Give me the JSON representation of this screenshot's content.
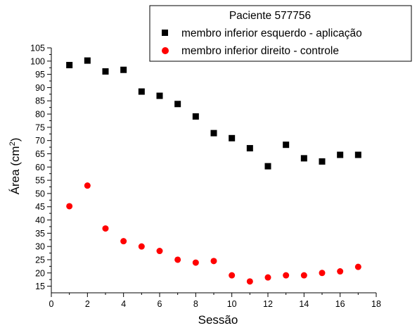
{
  "chart_data": {
    "type": "scatter",
    "title": "Paciente 577756",
    "xlabel": "Sessão",
    "ylabel": "Área (cm²)",
    "ylabel_parts": {
      "main": "Área (cm",
      "sup": "2",
      "end": ")"
    },
    "xlim": [
      0,
      18
    ],
    "ylim": [
      12.5,
      105
    ],
    "xticks": [
      0,
      2,
      4,
      6,
      8,
      10,
      12,
      14,
      16,
      18
    ],
    "yticks": [
      15,
      20,
      25,
      30,
      35,
      40,
      45,
      50,
      55,
      60,
      65,
      70,
      75,
      80,
      85,
      90,
      95,
      100,
      105
    ],
    "grid": false,
    "legend_position": "top-right",
    "series": [
      {
        "name": "membro inferior esquerdo - aplicação",
        "marker": "square",
        "color": "#000000",
        "x": [
          1,
          2,
          3,
          4,
          5,
          6,
          7,
          8,
          9,
          10,
          11,
          12,
          13,
          14,
          15,
          16,
          17
        ],
        "y": [
          98.5,
          100.2,
          96.1,
          96.7,
          88.5,
          86.9,
          83.8,
          79.1,
          72.8,
          70.9,
          67.1,
          60.3,
          68.4,
          63.3,
          62.1,
          64.6,
          64.6
        ]
      },
      {
        "name": "membro inferior direito - controle",
        "marker": "circle",
        "color": "#ff0000",
        "x": [
          1,
          2,
          3,
          4,
          5,
          6,
          7,
          8,
          9,
          10,
          11,
          12,
          13,
          14,
          15,
          16,
          17
        ],
        "y": [
          45.2,
          53.0,
          36.8,
          32.0,
          30.0,
          28.3,
          25.0,
          23.9,
          24.5,
          19.1,
          16.8,
          18.3,
          19.1,
          19.1,
          20.0,
          20.6,
          22.3
        ]
      }
    ]
  }
}
